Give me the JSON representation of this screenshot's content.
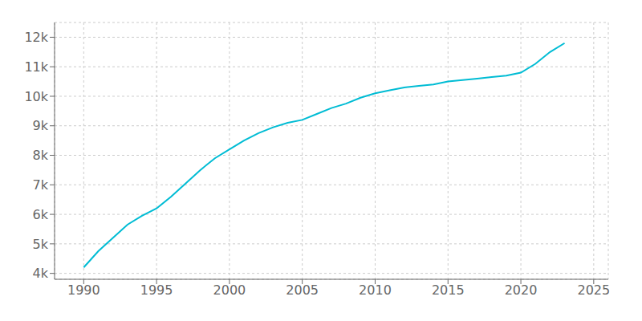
{
  "chart_data": {
    "type": "line",
    "x": [
      1990,
      1991,
      1992,
      1993,
      1994,
      1995,
      1996,
      1997,
      1998,
      1999,
      2000,
      2001,
      2002,
      2003,
      2004,
      2005,
      2006,
      2007,
      2008,
      2009,
      2010,
      2011,
      2012,
      2013,
      2014,
      2015,
      2016,
      2017,
      2018,
      2019,
      2020,
      2021,
      2022,
      2023
    ],
    "values": [
      4200,
      4750,
      5200,
      5650,
      5950,
      6200,
      6600,
      7050,
      7500,
      7900,
      8200,
      8500,
      8750,
      8950,
      9100,
      9200,
      9400,
      9600,
      9750,
      9950,
      10100,
      10200,
      10300,
      10350,
      10400,
      10500,
      10550,
      10600,
      10650,
      10700,
      10800,
      11100,
      11500,
      11800
    ],
    "color": "#00bcd4",
    "xlim": [
      1988,
      2026
    ],
    "ylim": [
      3800,
      12500
    ],
    "xticks": [
      1990,
      1995,
      2000,
      2005,
      2010,
      2015,
      2020,
      2025
    ],
    "yticks": [
      {
        "value": 4000,
        "label": "4k"
      },
      {
        "value": 5000,
        "label": "5k"
      },
      {
        "value": 6000,
        "label": "6k"
      },
      {
        "value": 7000,
        "label": "7k"
      },
      {
        "value": 8000,
        "label": "8k"
      },
      {
        "value": 9000,
        "label": "9k"
      },
      {
        "value": 10000,
        "label": "10k"
      },
      {
        "value": 11000,
        "label": "11k"
      },
      {
        "value": 12000,
        "label": "12k"
      }
    ],
    "grid": true
  }
}
